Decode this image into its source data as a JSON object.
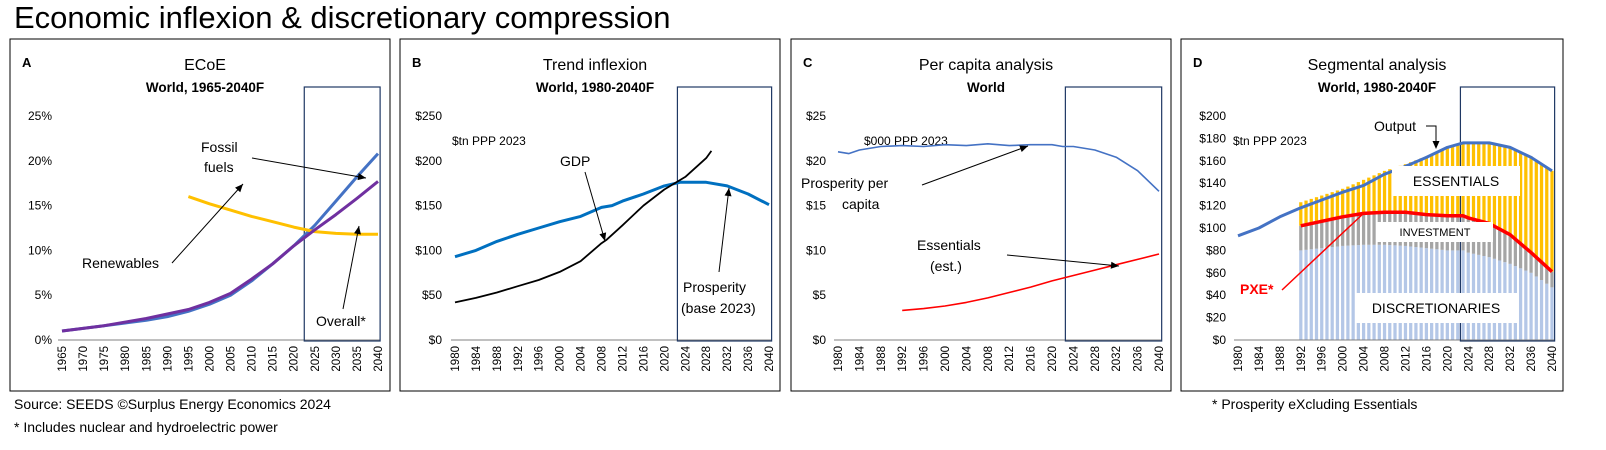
{
  "title": "Economic inflexion & discretionary compression",
  "footer": {
    "source": "Source: SEEDS ©Surplus Energy Economics 2024",
    "note1": "* Includes nuclear and hydroelectric power",
    "note2": "* Prosperity eXcluding Essentials"
  },
  "colors": {
    "blue": "#4472C4",
    "purple": "#7030A0",
    "yellow": "#FFC000",
    "black": "#000000",
    "prosperity_blue": "#0070C0",
    "red": "#FF0000",
    "grey": "#A5A5A5",
    "light_blue": "#B4C7E7",
    "frame": "#1F3864"
  },
  "chart_data": [
    {
      "panel": "A",
      "type": "line",
      "title": "ECoE",
      "subtitle": "World, 1965-2040F",
      "xlim": [
        1965,
        2040
      ],
      "xticks": [
        "1965",
        "1970",
        "1975",
        "1980",
        "1985",
        "1990",
        "1995",
        "2000",
        "2005",
        "2010",
        "2015",
        "2020",
        "2025",
        "2030",
        "2035",
        "2040"
      ],
      "ylim": [
        0,
        25
      ],
      "yticks": [
        "0%",
        "5%",
        "10%",
        "15%",
        "20%",
        "25%"
      ],
      "forecast_box": [
        2022.5,
        2040.5
      ],
      "series": [
        {
          "name": "Fossil fuels",
          "color": "#4472C4",
          "x": [
            1965,
            1970,
            1975,
            1980,
            1985,
            1990,
            1995,
            2000,
            2005,
            2010,
            2015,
            2020,
            2025,
            2030,
            2035,
            2040
          ],
          "y": [
            1.0,
            1.3,
            1.6,
            1.9,
            2.2,
            2.6,
            3.2,
            4.0,
            5.0,
            6.6,
            8.5,
            10.5,
            12.8,
            15.5,
            18.2,
            20.8
          ]
        },
        {
          "name": "Renewables",
          "color": "#FFC000",
          "x": [
            1995,
            2000,
            2005,
            2010,
            2015,
            2020,
            2025,
            2030,
            2035,
            2040
          ],
          "y": [
            16.0,
            15.2,
            14.5,
            13.8,
            13.2,
            12.6,
            12.1,
            11.9,
            11.8,
            11.8
          ]
        },
        {
          "name": "Overall*",
          "color": "#7030A0",
          "x": [
            1965,
            1970,
            1975,
            1980,
            1985,
            1990,
            1995,
            2000,
            2005,
            2010,
            2015,
            2020,
            2025,
            2030,
            2035,
            2040
          ],
          "y": [
            1.0,
            1.3,
            1.6,
            2.0,
            2.4,
            2.9,
            3.4,
            4.2,
            5.2,
            6.8,
            8.5,
            10.5,
            12.3,
            14.0,
            15.8,
            17.7
          ]
        }
      ],
      "annotations": [
        {
          "text": "Fossil",
          "text2": "fuels"
        },
        {
          "text": "Renewables"
        },
        {
          "text": "Overall*"
        }
      ]
    },
    {
      "panel": "B",
      "type": "line",
      "title": "Trend inflexion",
      "subtitle": "World, 1980-2040F",
      "units": "$tn PPP 2023",
      "xlim": [
        1980,
        2040
      ],
      "xticks": [
        "1980",
        "1984",
        "1988",
        "1992",
        "1996",
        "2000",
        "2004",
        "2008",
        "2012",
        "2016",
        "2020",
        "2024",
        "2028",
        "2032",
        "2036",
        "2040"
      ],
      "ylim": [
        0,
        250
      ],
      "yticks": [
        "$0",
        "$50",
        "$100",
        "$150",
        "$200",
        "$250"
      ],
      "forecast_box": [
        2022.5,
        2040.5
      ],
      "series": [
        {
          "name": "Prosperity (base 2023)",
          "color": "#0070C0",
          "x": [
            1980,
            1984,
            1988,
            1992,
            1996,
            2000,
            2004,
            2008,
            2010,
            2012,
            2016,
            2020,
            2023,
            2024,
            2028,
            2032,
            2036,
            2040
          ],
          "y": [
            93,
            100,
            110,
            118,
            125,
            132,
            138,
            148,
            150,
            155,
            163,
            172,
            176,
            176,
            176,
            172,
            163,
            151
          ]
        },
        {
          "name": "GDP",
          "color": "#000000",
          "x": [
            1980,
            1984,
            1988,
            1992,
            1996,
            2000,
            2004,
            2008,
            2009,
            2012,
            2016,
            2020,
            2024,
            2028,
            2029
          ],
          "y": [
            42,
            47,
            53,
            60,
            67,
            76,
            88,
            108,
            112,
            128,
            150,
            168,
            182,
            203,
            211
          ]
        }
      ],
      "annotations": [
        {
          "text": "GDP"
        },
        {
          "text": "Prosperity",
          "text2": "(base 2023)"
        }
      ]
    },
    {
      "panel": "C",
      "type": "line",
      "title": "Per capita analysis",
      "subtitle": "World",
      "units": "$000 PPP 2023",
      "xlim": [
        1980,
        2040
      ],
      "xticks": [
        "1980",
        "1984",
        "1988",
        "1992",
        "1996",
        "2000",
        "2004",
        "2008",
        "2012",
        "2016",
        "2020",
        "2024",
        "2028",
        "2032",
        "2036",
        "2040"
      ],
      "ylim": [
        0,
        25
      ],
      "yticks": [
        "$0",
        "$5",
        "$10",
        "$15",
        "$20",
        "$25"
      ],
      "forecast_box": [
        2022.5,
        2040.5
      ],
      "series": [
        {
          "name": "Prosperity per capita",
          "color": "#4472C4",
          "x": [
            1980,
            1982,
            1984,
            1988,
            1992,
            1996,
            2000,
            2004,
            2008,
            2012,
            2016,
            2020,
            2022,
            2024,
            2028,
            2032,
            2036,
            2040
          ],
          "y": [
            21.0,
            20.8,
            21.2,
            21.6,
            21.7,
            21.6,
            21.8,
            21.7,
            21.9,
            21.7,
            21.8,
            21.8,
            21.6,
            21.6,
            21.2,
            20.4,
            18.9,
            16.6
          ]
        },
        {
          "name": "Essentials (est.)",
          "color": "#FF0000",
          "x": [
            1992,
            1996,
            2000,
            2004,
            2008,
            2012,
            2016,
            2020,
            2024,
            2028,
            2032,
            2036,
            2040
          ],
          "y": [
            3.3,
            3.5,
            3.8,
            4.2,
            4.7,
            5.3,
            5.9,
            6.6,
            7.2,
            7.8,
            8.4,
            9.0,
            9.6
          ]
        }
      ],
      "annotations": [
        {
          "text": "Prosperity per",
          "text2": "capita"
        },
        {
          "text": "Essentials",
          "text2": "(est.)"
        }
      ]
    },
    {
      "panel": "D",
      "type": "area",
      "title": "Segmental analysis",
      "subtitle": "World, 1980-2040F",
      "units": "$tn PPP 2023",
      "xlim": [
        1980,
        2040
      ],
      "xticks": [
        "1980",
        "1984",
        "1988",
        "1992",
        "1996",
        "2000",
        "2004",
        "2008",
        "2012",
        "2016",
        "2020",
        "2024",
        "2028",
        "2032",
        "2036",
        "2040"
      ],
      "ylim": [
        0,
        200
      ],
      "yticks": [
        "$0",
        "$20",
        "$40",
        "$60",
        "$80",
        "$100",
        "$120",
        "$140",
        "$160",
        "$180",
        "$200"
      ],
      "forecast_box": [
        2022.5,
        2040.5
      ],
      "stack": {
        "x": [
          1992,
          1996,
          2000,
          2004,
          2008,
          2012,
          2016,
          2020,
          2023,
          2024,
          2028,
          2032,
          2036,
          2040
        ],
        "discretionaries": [
          80,
          82,
          84,
          85,
          85,
          84,
          82,
          80,
          80,
          78,
          74,
          68,
          60,
          47
        ],
        "investment": [
          22,
          24,
          26,
          28,
          29,
          30,
          30,
          31,
          31,
          31,
          30,
          26,
          18,
          14
        ],
        "essentials": [
          21,
          23,
          25,
          30,
          37,
          43,
          52,
          61,
          65,
          67,
          72,
          78,
          86,
          90
        ]
      },
      "series": [
        {
          "name": "Output",
          "color": "#4472C4",
          "x": [
            1980,
            1984,
            1988,
            1992,
            1996,
            2000,
            2004,
            2008,
            2012,
            2016,
            2020,
            2023,
            2024,
            2028,
            2032,
            2036,
            2040
          ],
          "y": [
            93,
            100,
            110,
            118,
            125,
            132,
            138,
            148,
            155,
            163,
            172,
            176,
            176,
            176,
            172,
            163,
            151
          ]
        },
        {
          "name": "PXE*",
          "color": "#FF0000",
          "x": [
            1992,
            1996,
            2000,
            2004,
            2008,
            2012,
            2016,
            2020,
            2023,
            2024,
            2028,
            2032,
            2036,
            2040
          ],
          "y": [
            102,
            106,
            110,
            113,
            114,
            114,
            112,
            111,
            111,
            109,
            104,
            94,
            78,
            61
          ]
        }
      ],
      "labels": {
        "essentials": "ESSENTIALS",
        "investment": "INVESTMENT",
        "discretionaries": "DISCRETIONARIES",
        "output": "Output",
        "pxe": "PXE*"
      }
    }
  ]
}
